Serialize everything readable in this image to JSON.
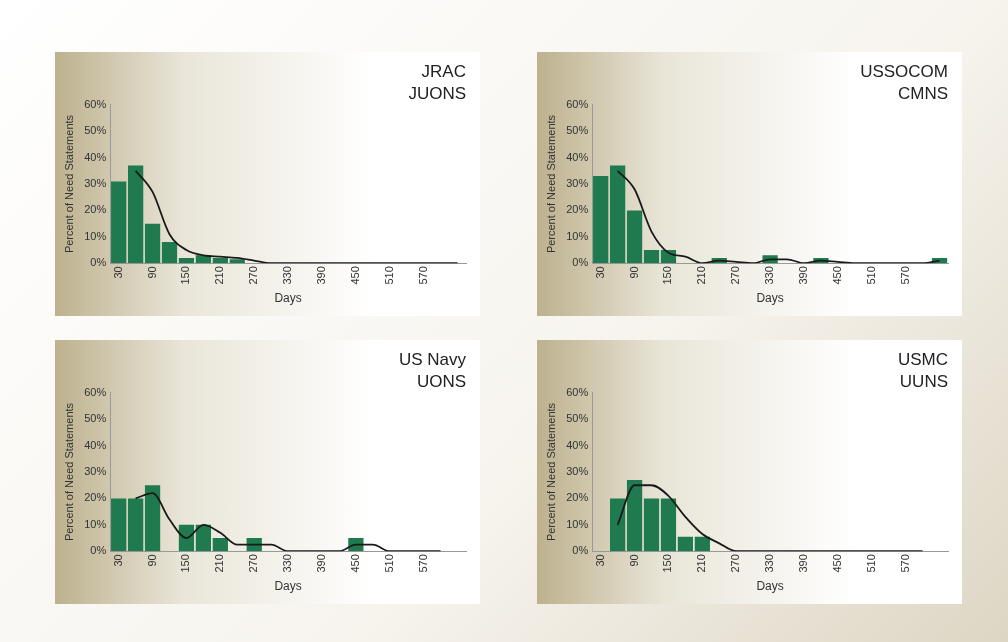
{
  "chart_data": [
    {
      "type": "bar",
      "title": "JRAC",
      "subtitle": "JUONS",
      "xlabel": "Days",
      "ylabel": "Percent of Need Statements",
      "categories": [
        "30",
        null,
        "90",
        null,
        "150",
        null,
        "210",
        null,
        "270",
        null,
        "330",
        null,
        "390",
        null,
        "450",
        null,
        "510",
        null,
        "570",
        null,
        null
      ],
      "series": [
        {
          "color": "#1f7a4f",
          "values": [
            31,
            37,
            15,
            8,
            2,
            3,
            2,
            1.5,
            0,
            0,
            0,
            0,
            0,
            0,
            0,
            0,
            0,
            0,
            0,
            0,
            0
          ]
        },
        {
          "type": "line",
          "color": "#1a1a1a",
          "values": [
            null,
            35,
            27,
            11,
            5,
            3,
            2.5,
            2,
            1,
            0,
            0,
            0,
            0,
            0,
            0,
            0,
            0,
            0,
            0,
            0,
            0
          ]
        }
      ],
      "ylim": [
        0,
        60
      ],
      "yticks": [
        {
          "value": 0,
          "label": "0%"
        },
        {
          "value": 10,
          "label": "10%"
        },
        {
          "value": 20,
          "label": "20%"
        },
        {
          "value": 30,
          "label": "30%"
        },
        {
          "value": 40,
          "label": "40%"
        },
        {
          "value": 50,
          "label": "50%"
        },
        {
          "value": 60,
          "label": "60%"
        }
      ],
      "grid": false,
      "legend": false,
      "marker": "none"
    },
    {
      "type": "bar",
      "title": "USSOCOM",
      "subtitle": "CMNS",
      "xlabel": "Days",
      "ylabel": "Percent of Need Statements",
      "categories": [
        "30",
        null,
        "90",
        null,
        "150",
        null,
        "210",
        null,
        "270",
        null,
        "330",
        null,
        "390",
        null,
        "450",
        null,
        "510",
        null,
        "570",
        null,
        null
      ],
      "series": [
        {
          "color": "#1f7a4f",
          "values": [
            33,
            37,
            20,
            5,
            5,
            0,
            0,
            2,
            0,
            0,
            3,
            0,
            0,
            2,
            0,
            0,
            0,
            0,
            0,
            0,
            2
          ]
        },
        {
          "type": "line",
          "color": "#1a1a1a",
          "values": [
            null,
            35,
            28,
            12,
            4,
            2.5,
            0,
            1,
            0.5,
            0,
            1.5,
            1.5,
            0,
            1,
            0.5,
            0,
            0,
            0,
            0,
            0,
            1
          ]
        }
      ],
      "ylim": [
        0,
        60
      ],
      "yticks": [
        {
          "value": 0,
          "label": "0%"
        },
        {
          "value": 10,
          "label": "10%"
        },
        {
          "value": 20,
          "label": "20%"
        },
        {
          "value": 30,
          "label": "30%"
        },
        {
          "value": 40,
          "label": "40%"
        },
        {
          "value": 50,
          "label": "50%"
        },
        {
          "value": 60,
          "label": "60%"
        }
      ],
      "grid": false,
      "legend": false,
      "marker": "none"
    },
    {
      "type": "bar",
      "title": "US Navy",
      "subtitle": "UONS",
      "xlabel": "Days",
      "ylabel": "Percent of Need Statements",
      "categories": [
        "30",
        null,
        "90",
        null,
        "150",
        null,
        "210",
        null,
        "270",
        null,
        "330",
        null,
        "390",
        null,
        "450",
        null,
        "510",
        null,
        "570",
        null,
        null
      ],
      "series": [
        {
          "color": "#1f7a4f",
          "values": [
            20,
            20,
            25,
            0,
            10,
            10,
            5,
            0,
            5,
            0,
            0,
            0,
            0,
            0,
            5,
            0,
            0,
            0,
            0,
            0,
            0
          ]
        },
        {
          "type": "line",
          "color": "#1a1a1a",
          "values": [
            null,
            20,
            22,
            12,
            5,
            10,
            7,
            2.5,
            2.5,
            2.5,
            0,
            0,
            0,
            0,
            2.5,
            2.5,
            0,
            0,
            0,
            0,
            null
          ]
        }
      ],
      "ylim": [
        0,
        60
      ],
      "yticks": [
        {
          "value": 0,
          "label": "0%"
        },
        {
          "value": 10,
          "label": "10%"
        },
        {
          "value": 20,
          "label": "20%"
        },
        {
          "value": 30,
          "label": "30%"
        },
        {
          "value": 40,
          "label": "40%"
        },
        {
          "value": 50,
          "label": "50%"
        },
        {
          "value": 60,
          "label": "60%"
        }
      ],
      "grid": false,
      "legend": false,
      "marker": "none"
    },
    {
      "type": "bar",
      "title": "USMC",
      "subtitle": "UUNS",
      "xlabel": "Days",
      "ylabel": "Percent of Need Statements",
      "categories": [
        "30",
        null,
        "90",
        null,
        "150",
        null,
        "210",
        null,
        "270",
        null,
        "330",
        null,
        "390",
        null,
        "450",
        null,
        "510",
        null,
        "570",
        null,
        null
      ],
      "series": [
        {
          "color": "#1f7a4f",
          "values": [
            0,
            20,
            27,
            20,
            20,
            5.5,
            5.5,
            0,
            0,
            0,
            0,
            0,
            0,
            0,
            0,
            0,
            0,
            0,
            0,
            0,
            0
          ]
        },
        {
          "type": "line",
          "color": "#1a1a1a",
          "values": [
            null,
            10,
            25,
            25,
            21,
            13,
            6.5,
            3,
            0,
            0,
            0,
            0,
            0,
            0,
            0,
            0,
            0,
            0,
            0,
            0,
            null
          ]
        }
      ],
      "ylim": [
        0,
        60
      ],
      "yticks": [
        {
          "value": 0,
          "label": "0%"
        },
        {
          "value": 10,
          "label": "10%"
        },
        {
          "value": 20,
          "label": "20%"
        },
        {
          "value": 30,
          "label": "30%"
        },
        {
          "value": 40,
          "label": "40%"
        },
        {
          "value": 50,
          "label": "50%"
        },
        {
          "value": 60,
          "label": "60%"
        }
      ],
      "grid": false,
      "legend": false,
      "marker": "none"
    }
  ]
}
